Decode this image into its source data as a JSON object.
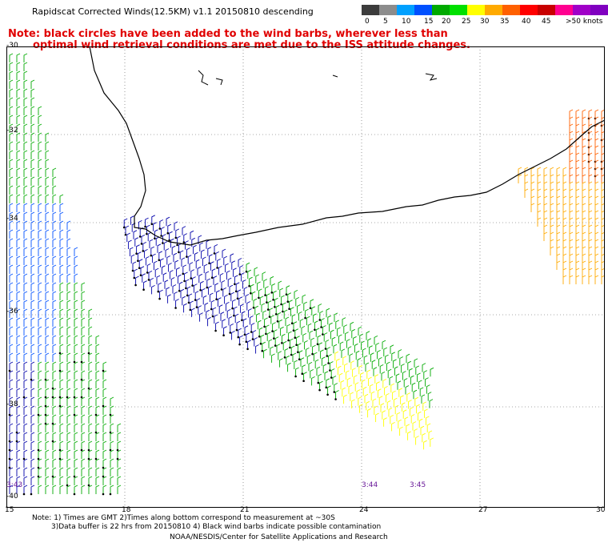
{
  "header": {
    "title": "Rapidscat Corrected Winds(12.5KM) v1.1 20150810 descending",
    "note_line1": "Note: black circles have been added to the wind barbs, wherever less than",
    "note_line2": "optimal wind retrieval conditions are met due to the ISS attitude changes."
  },
  "color_scale": {
    "unit_label": ">50 knots",
    "labels": [
      "0",
      "5",
      "10",
      "15",
      "20",
      "25",
      "30",
      "35",
      "40",
      "45"
    ],
    "colors": [
      "#3c3c3c",
      "#8c8c8c",
      "#00a0ff",
      "#0050ff",
      "#00aa00",
      "#00e000",
      "#ffff00",
      "#ffaa00",
      "#ff6000",
      "#ff0000",
      "#c80000",
      "#ff0090",
      "#a000c8",
      "#8000c0"
    ]
  },
  "map": {
    "lat_labels": [
      "-30",
      "-32",
      "-34",
      "-36",
      "-38",
      "-40"
    ],
    "lon_labels": [
      "15",
      "18",
      "21",
      "24",
      "27",
      "30"
    ],
    "time_labels": [
      "3:43",
      "3:44",
      "3:45"
    ]
  },
  "footer": {
    "line1": "Note: 1) Times are GMT 2)Times along bottom correspond to measurement at ~30S",
    "line2": "3)Data buffer is 22 hrs from 20150810 4) Black wind barbs indicate possible contamination",
    "line3": "NOAA/NESDIS/Center for Satellite Applications and Research"
  }
}
